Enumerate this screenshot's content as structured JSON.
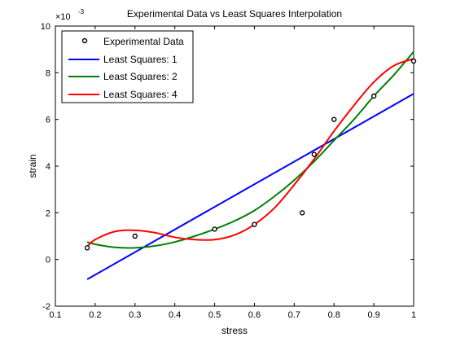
{
  "chart_data": {
    "type": "line",
    "title": "Experimental Data vs Least Squares Interpolation",
    "xlabel": "stress",
    "ylabel": "strain",
    "y_exponent_label": "×10",
    "y_exponent_power": "-3",
    "xlim": [
      0.1,
      1.0
    ],
    "ylim": [
      -2,
      10
    ],
    "xticks": [
      0.1,
      0.2,
      0.3,
      0.4,
      0.5,
      0.6,
      0.7,
      0.8,
      0.9,
      1.0
    ],
    "xtick_labels": [
      "0.1",
      "0.2",
      "0.3",
      "0.4",
      "0.5",
      "0.6",
      "0.7",
      "0.8",
      "0.9",
      "1"
    ],
    "yticks": [
      -2,
      0,
      2,
      4,
      6,
      8,
      10
    ],
    "ytick_labels": [
      "-2",
      "0",
      "2",
      "4",
      "6",
      "8",
      "10"
    ],
    "grid": false,
    "legend_position": "top-left",
    "scatter": {
      "name": "Experimental Data",
      "color": "#000000",
      "x": [
        0.18,
        0.3,
        0.5,
        0.6,
        0.72,
        0.75,
        0.8,
        0.9,
        1.0
      ],
      "y": [
        0.5,
        1.0,
        1.3,
        1.5,
        2.0,
        4.5,
        6.0,
        7.0,
        8.5
      ]
    },
    "series": [
      {
        "name": "Least Squares: 1",
        "color": "#0000ff",
        "x": [
          0.18,
          1.0
        ],
        "y": [
          -0.85,
          7.1
        ]
      },
      {
        "name": "Least Squares: 2",
        "color": "#008000",
        "x": [
          0.18,
          0.2,
          0.25,
          0.3,
          0.35,
          0.4,
          0.45,
          0.5,
          0.55,
          0.6,
          0.65,
          0.7,
          0.75,
          0.8,
          0.85,
          0.9,
          0.95,
          1.0
        ],
        "y": [
          0.75,
          0.65,
          0.52,
          0.5,
          0.58,
          0.75,
          1.0,
          1.3,
          1.65,
          2.1,
          2.7,
          3.4,
          4.2,
          5.1,
          6.0,
          7.0,
          7.9,
          8.9
        ]
      },
      {
        "name": "Least Squares: 4",
        "color": "#ff0000",
        "x": [
          0.18,
          0.2,
          0.25,
          0.3,
          0.35,
          0.4,
          0.45,
          0.5,
          0.55,
          0.6,
          0.65,
          0.7,
          0.75,
          0.8,
          0.85,
          0.9,
          0.95,
          1.0
        ],
        "y": [
          0.55,
          0.85,
          1.2,
          1.25,
          1.15,
          0.95,
          0.85,
          0.85,
          1.05,
          1.5,
          2.2,
          3.2,
          4.3,
          5.5,
          6.6,
          7.6,
          8.3,
          8.6
        ]
      }
    ]
  }
}
